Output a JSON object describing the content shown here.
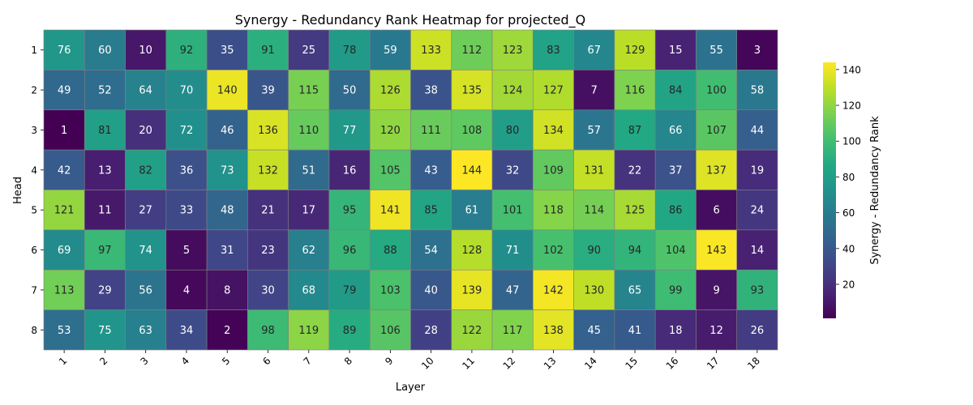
{
  "chart_data": {
    "type": "heatmap",
    "title": "Synergy - Redundancy Rank Heatmap for projected_Q",
    "xlabel": "Layer",
    "ylabel": "Head",
    "x_categories": [
      "1",
      "2",
      "3",
      "4",
      "5",
      "6",
      "7",
      "8",
      "9",
      "10",
      "11",
      "12",
      "13",
      "14",
      "15",
      "16",
      "17",
      "18"
    ],
    "y_categories": [
      "1",
      "2",
      "3",
      "4",
      "5",
      "6",
      "7",
      "8"
    ],
    "values": [
      [
        76,
        60,
        10,
        92,
        35,
        91,
        25,
        78,
        59,
        133,
        112,
        123,
        83,
        67,
        129,
        15,
        55,
        3
      ],
      [
        49,
        52,
        64,
        70,
        140,
        39,
        115,
        50,
        126,
        38,
        135,
        124,
        127,
        7,
        116,
        84,
        100,
        58
      ],
      [
        1,
        81,
        20,
        72,
        46,
        136,
        110,
        77,
        120,
        111,
        108,
        80,
        134,
        57,
        87,
        66,
        107,
        44
      ],
      [
        42,
        13,
        82,
        36,
        73,
        132,
        51,
        16,
        105,
        43,
        144,
        32,
        109,
        131,
        22,
        37,
        137,
        19
      ],
      [
        121,
        11,
        27,
        33,
        48,
        21,
        17,
        95,
        141,
        85,
        61,
        101,
        118,
        114,
        125,
        86,
        6,
        24
      ],
      [
        69,
        97,
        74,
        5,
        31,
        23,
        62,
        96,
        88,
        54,
        128,
        71,
        102,
        90,
        94,
        104,
        143,
        14
      ],
      [
        113,
        29,
        56,
        4,
        8,
        30,
        68,
        79,
        103,
        40,
        139,
        47,
        142,
        130,
        65,
        99,
        9,
        93
      ],
      [
        53,
        75,
        63,
        34,
        2,
        98,
        119,
        89,
        106,
        28,
        122,
        117,
        138,
        45,
        41,
        18,
        12,
        26
      ]
    ],
    "colormap": "viridis",
    "vmin": 1,
    "vmax": 144,
    "colorbar": {
      "label": "Synergy - Redundancy Rank",
      "ticks": [
        20,
        40,
        60,
        80,
        100,
        120,
        140
      ]
    },
    "annotations": true,
    "grid": false
  }
}
